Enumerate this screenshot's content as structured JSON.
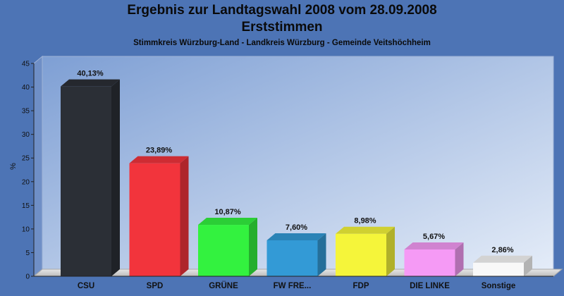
{
  "header": {
    "title": "Ergebnis zur Landtagswahl 2008 vom 28.09.2008",
    "subtitle": "Erststimmen",
    "caption": "Stimmkreis Würzburg-Land - Landkreis Würzburg - Gemeinde Veitshöchheim"
  },
  "chart_data": {
    "type": "bar",
    "categories": [
      "CSU",
      "SPD",
      "GRÜNE",
      "FW FRE...",
      "FDP",
      "DIE LINKE",
      "Sonstige"
    ],
    "values": [
      40.13,
      23.89,
      10.87,
      7.6,
      8.98,
      5.67,
      2.86
    ],
    "data_labels": [
      "40,13%",
      "23,89%",
      "10,87%",
      "7,60%",
      "8,98%",
      "5,67%",
      "2,86%"
    ],
    "colors": [
      "#2b2f36",
      "#f2343c",
      "#33f23f",
      "#339ad6",
      "#f5f53a",
      "#f59af5",
      "#f8f8f8"
    ],
    "ylabel": "%",
    "ylim": [
      0,
      45
    ],
    "yticks": [
      0,
      5,
      10,
      15,
      20,
      25,
      30,
      35,
      40,
      45
    ],
    "grid": false,
    "legend": "none"
  }
}
